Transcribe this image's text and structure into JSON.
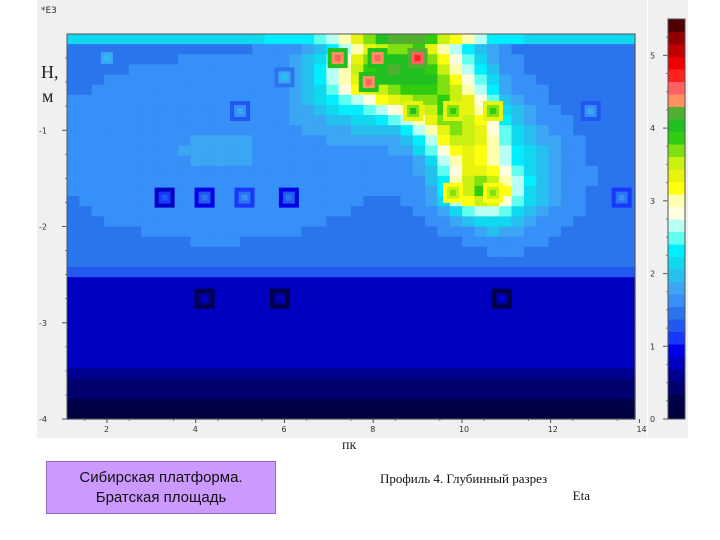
{
  "chart_data": {
    "type": "heatmap",
    "title": "",
    "magnitude_label": "*E3",
    "ylabel_line1": "H,",
    "ylabel_line2": "м",
    "xlabel": "пк",
    "x_range": [
      1.1,
      13.9
    ],
    "y_range": [
      -4.0,
      0.0
    ],
    "x_ticks": [
      "2",
      "4",
      "6",
      "8",
      "10",
      "12",
      "14"
    ],
    "y_ticks": [
      "-1",
      "-2",
      "-3",
      "-4"
    ],
    "colorbar": {
      "range": [
        0,
        5.5
      ],
      "ticks": [
        "0",
        "1",
        "2",
        "3",
        "4",
        "5"
      ],
      "colors": [
        "#000040",
        "#00004a",
        "#00006e",
        "#000090",
        "#0000c0",
        "#0000e8",
        "#1838ff",
        "#2058f0",
        "#2a74ee",
        "#3690f8",
        "#3aa6f4",
        "#26c0ee",
        "#10d8ee",
        "#00eeff",
        "#60fff0",
        "#b8fff4",
        "#ffffe0",
        "#ffffb0",
        "#ffff10",
        "#e8f410",
        "#c8f010",
        "#80e010",
        "#30cc10",
        "#20c020",
        "#50b030",
        "#ff9060",
        "#ff6060",
        "#ff2020",
        "#ee0000",
        "#c00000",
        "#900000",
        "#500000"
      ]
    },
    "dots": [
      {
        "x": 7.2,
        "y": -0.25,
        "v": 4.7
      },
      {
        "x": 8.1,
        "y": -0.25,
        "v": 4.7
      },
      {
        "x": 9.0,
        "y": -0.25,
        "v": 4.8
      },
      {
        "x": 7.9,
        "y": -0.5,
        "v": 4.6
      },
      {
        "x": 8.9,
        "y": -0.8,
        "v": 4.0
      },
      {
        "x": 9.8,
        "y": -0.8,
        "v": 3.9
      },
      {
        "x": 10.7,
        "y": -0.8,
        "v": 3.9
      },
      {
        "x": 9.8,
        "y": -1.65,
        "v": 3.8
      },
      {
        "x": 10.7,
        "y": -1.65,
        "v": 3.8
      },
      {
        "x": 2.0,
        "y": -0.25,
        "v": 2.0
      },
      {
        "x": 6.0,
        "y": -0.45,
        "v": 1.9
      },
      {
        "x": 5.0,
        "y": -0.8,
        "v": 1.8
      },
      {
        "x": 3.3,
        "y": -1.7,
        "v": 1.2
      },
      {
        "x": 4.2,
        "y": -1.7,
        "v": 1.5
      },
      {
        "x": 5.1,
        "y": -1.7,
        "v": 1.6
      },
      {
        "x": 6.1,
        "y": -1.7,
        "v": 1.4
      },
      {
        "x": 12.9,
        "y": -0.8,
        "v": 1.8
      },
      {
        "x": 13.6,
        "y": -1.7,
        "v": 1.6
      },
      {
        "x": 4.2,
        "y": -2.75,
        "v": 0.7
      },
      {
        "x": 5.9,
        "y": -2.75,
        "v": 0.7
      },
      {
        "x": 10.9,
        "y": -2.75,
        "v": 0.8
      }
    ]
  },
  "texts": {
    "region_line1": "Сибирская платформа.",
    "region_line2": "Братская площадь",
    "caption_line1": "Профиль 4. Глубинный разрез",
    "caption_line2": "Eta"
  }
}
